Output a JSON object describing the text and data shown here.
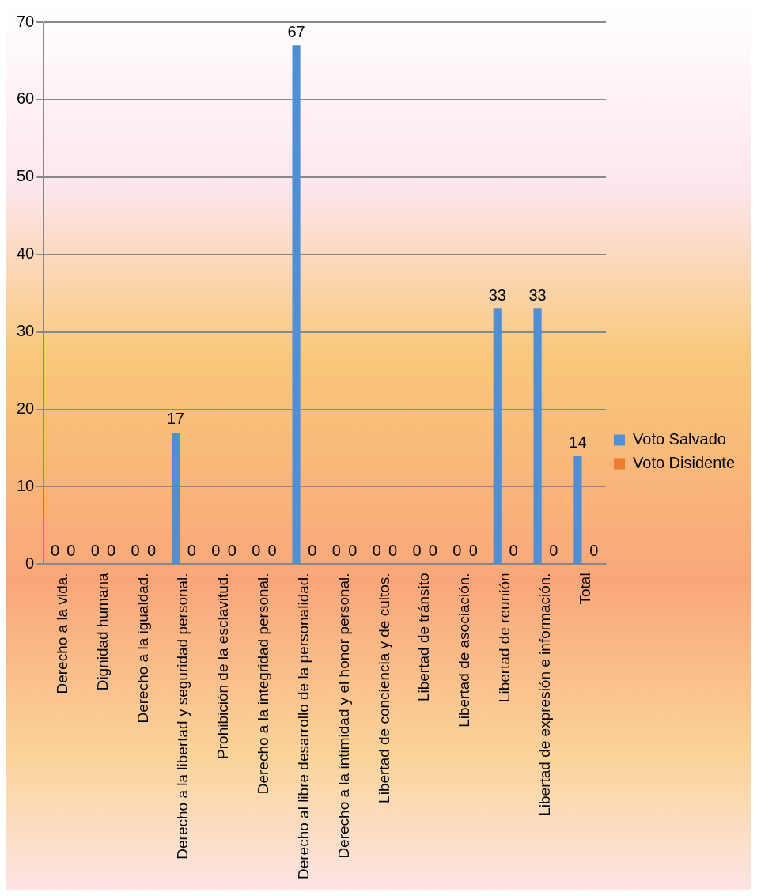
{
  "chart_data": {
    "type": "bar",
    "categories": [
      "Derecho a la vida.",
      "Dignidad humana",
      "Derecho a la igualdad.",
      "Derecho a la libertad y seguridad personal.",
      "Prohibición de la esclavitud.",
      "Derecho a la integridad personal.",
      "Derecho al libre desarrollo de la personalidad.",
      "Derecho a la intimidad y el honor personal.",
      "Libertad de conciencia y de cultos.",
      "Libertad de tránsito",
      "Libertad de asociación.",
      "Libertad de reunión",
      "Libertad de expresión e información.",
      "Total"
    ],
    "series": [
      {
        "name": "Voto Salvado",
        "color": "#4f8fd6",
        "values": [
          0,
          0,
          0,
          17,
          0,
          0,
          67,
          0,
          0,
          0,
          0,
          33,
          33,
          14
        ]
      },
      {
        "name": "Voto Disidente",
        "color": "#ed7d31",
        "values": [
          0,
          0,
          0,
          0,
          0,
          0,
          0,
          0,
          0,
          0,
          0,
          0,
          0,
          0
        ]
      }
    ],
    "ylim": [
      0,
      70
    ],
    "yticks": [
      0,
      10,
      20,
      30,
      40,
      50,
      60,
      70
    ],
    "grid": "y",
    "legend": "right",
    "data_labels": true
  }
}
